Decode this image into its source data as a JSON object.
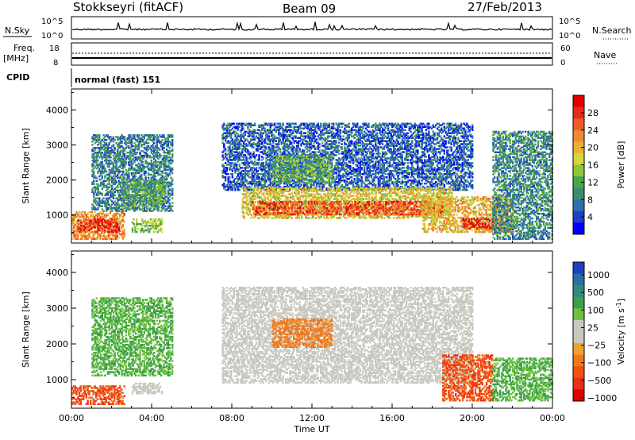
{
  "header": {
    "station": "Stokkseyri (fitACF)",
    "beam": "Beam 09",
    "date": "27/Feb/2013"
  },
  "top_panels": {
    "nsky_label": "N.Sky",
    "nsearch_label": "N.Search",
    "freq_label_1": "Freq.",
    "freq_label_2": "[MHz]",
    "nave_label": "Nave",
    "cpid_label": "CPID",
    "cpid_text": "normal (fast) 151",
    "left_ticks_nsky": [
      "10^5",
      "10^0"
    ],
    "right_ticks_nsky": [
      "10^5",
      "10^0"
    ],
    "left_ticks_freq": [
      "18",
      "8"
    ],
    "right_ticks_nave": [
      "60",
      "0"
    ]
  },
  "chart_data": [
    {
      "type": "heatmap",
      "name": "Power",
      "xlabel": "",
      "ylabel": "Slant Range [km]",
      "xlim": [
        0,
        24
      ],
      "ylim": [
        200,
        4600
      ],
      "yticks": [
        1000,
        2000,
        3000,
        4000
      ],
      "colorbar": {
        "label": "Power [dB]",
        "ticks": [
          4,
          8,
          12,
          16,
          20,
          24,
          28
        ],
        "range": [
          0,
          32
        ],
        "colors": [
          "#0000ff",
          "#1e3fc8",
          "#2f6fb0",
          "#3c8c6e",
          "#4aa54b",
          "#8cc63a",
          "#d6d63a",
          "#e8b034",
          "#f08a2c",
          "#ee5a24",
          "#e82a1c",
          "#e00000"
        ]
      },
      "regions": [
        {
          "t0": 0.0,
          "t1": 2.6,
          "r0": 300,
          "r1": 1100,
          "v": 22
        },
        {
          "t0": 0.3,
          "t1": 2.4,
          "r0": 500,
          "r1": 900,
          "v": 28
        },
        {
          "t0": 1.0,
          "t1": 5.0,
          "r0": 1100,
          "r1": 3300,
          "v": 8
        },
        {
          "t0": 2.5,
          "t1": 4.6,
          "r0": 1200,
          "r1": 2000,
          "v": 12
        },
        {
          "t0": 3.0,
          "t1": 4.5,
          "r0": 500,
          "r1": 900,
          "v": 14
        },
        {
          "t0": 7.5,
          "t1": 20.0,
          "r0": 1700,
          "r1": 3600,
          "v": 6
        },
        {
          "t0": 8.5,
          "t1": 19.0,
          "r0": 900,
          "r1": 1800,
          "v": 18
        },
        {
          "t0": 9.0,
          "t1": 18.5,
          "r0": 1000,
          "r1": 1400,
          "v": 26
        },
        {
          "t0": 10.0,
          "t1": 13.0,
          "r0": 1900,
          "r1": 2700,
          "v": 12
        },
        {
          "t0": 17.5,
          "t1": 22.0,
          "r0": 500,
          "r1": 1500,
          "v": 20
        },
        {
          "t0": 19.5,
          "t1": 21.0,
          "r0": 600,
          "r1": 900,
          "v": 30
        },
        {
          "t0": 21.0,
          "t1": 24.0,
          "r0": 300,
          "r1": 3400,
          "v": 9
        }
      ],
      "xticks": [
        "00:00",
        "04:00",
        "08:00",
        "12:00",
        "16:00",
        "20:00",
        "00:00"
      ]
    },
    {
      "type": "heatmap",
      "name": "Velocity",
      "xlabel": "Time UT",
      "ylabel": "Slant Range [km]",
      "xlim": [
        0,
        24
      ],
      "ylim": [
        200,
        4600
      ],
      "yticks": [
        1000,
        2000,
        3000,
        4000
      ],
      "colorbar": {
        "label": "Velocity [m s",
        "label_sup": "-1",
        "label_end": "]",
        "ticks": [
          1000,
          500,
          100,
          25,
          -25,
          -100,
          -500,
          -1000
        ],
        "tick_labels": [
          "1000",
          "500",
          "100",
          "25",
          "−25",
          "−100",
          "−500",
          "−1000"
        ],
        "colors": [
          "#2040c0",
          "#2c6ea0",
          "#2f8a7a",
          "#3aa04a",
          "#6fc040",
          "#c8c8c0",
          "#c8c8c0",
          "#f0a030",
          "#f07820",
          "#f05010",
          "#e83018",
          "#e00000"
        ]
      },
      "regions": [
        {
          "t0": 0.0,
          "t1": 2.6,
          "r0": 300,
          "r1": 800,
          "v": -400
        },
        {
          "t0": 1.0,
          "t1": 5.0,
          "r0": 1100,
          "r1": 3300,
          "v": 300
        },
        {
          "t0": 3.0,
          "t1": 4.5,
          "r0": 600,
          "r1": 900,
          "v": 20
        },
        {
          "t0": 7.5,
          "t1": 20.0,
          "r0": 900,
          "r1": 3600,
          "v": 0
        },
        {
          "t0": 10.0,
          "t1": 13.0,
          "r0": 1900,
          "r1": 2700,
          "v": -150
        },
        {
          "t0": 18.5,
          "t1": 21.0,
          "r0": 400,
          "r1": 1700,
          "v": -400
        },
        {
          "t0": 21.0,
          "t1": 24.0,
          "r0": 400,
          "r1": 1600,
          "v": 300
        }
      ],
      "xticks": [
        "00:00",
        "04:00",
        "08:00",
        "12:00",
        "16:00",
        "20:00",
        "00:00"
      ]
    }
  ]
}
